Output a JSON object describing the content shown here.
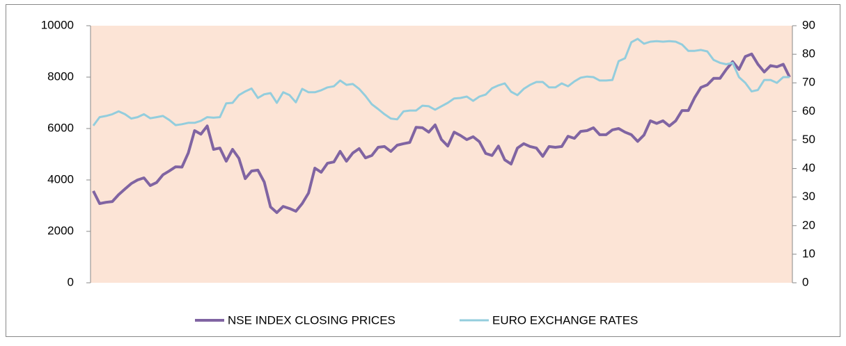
{
  "chart_data": {
    "type": "line",
    "categories": [
      null,
      null,
      null,
      null,
      null,
      null,
      null,
      null,
      null,
      null,
      null,
      null,
      null,
      null,
      null,
      null,
      null,
      null,
      null,
      null,
      null,
      null,
      null,
      null,
      null,
      null,
      null,
      null,
      null,
      null,
      null,
      null,
      null,
      null,
      null,
      null,
      null,
      null,
      null,
      null,
      null,
      null,
      null,
      null,
      null,
      null,
      null,
      null,
      null,
      null,
      null,
      null,
      null,
      null,
      null,
      null,
      null,
      null,
      null,
      null,
      null,
      null,
      null,
      null,
      null,
      null,
      null,
      null,
      null,
      null,
      null,
      null,
      null,
      null,
      null,
      null,
      null,
      null,
      null,
      null,
      null,
      null,
      null,
      null,
      null,
      null,
      null,
      null,
      null,
      null,
      null,
      null,
      null,
      null,
      null,
      null,
      null,
      null,
      null,
      null,
      null,
      null,
      null,
      null,
      null,
      null,
      null,
      null,
      null,
      null,
      null
    ],
    "series": [
      {
        "name": "NSE INDEX CLOSING PRICES",
        "color": "#8064a2",
        "values": [
          3570,
          3080,
          3130,
          3160,
          3430,
          3650,
          3860,
          4000,
          4080,
          3780,
          3900,
          4200,
          4350,
          4510,
          4500,
          5050,
          5920,
          5780,
          6100,
          5190,
          5240,
          4730,
          5190,
          4840,
          4050,
          4350,
          4380,
          3920,
          2950,
          2730,
          2970,
          2890,
          2780,
          3080,
          3490,
          4460,
          4300,
          4650,
          4700,
          5110,
          4730,
          5050,
          5220,
          4860,
          4950,
          5270,
          5300,
          5110,
          5350,
          5410,
          5460,
          6050,
          6030,
          5860,
          6140,
          5570,
          5320,
          5860,
          5730,
          5570,
          5680,
          5490,
          5030,
          4950,
          5320,
          4780,
          4620,
          5240,
          5410,
          5300,
          5240,
          4920,
          5300,
          5270,
          5300,
          5700,
          5620,
          5890,
          5920,
          6030,
          5760,
          5760,
          5950,
          6000,
          5860,
          5760,
          5500,
          5750,
          6300,
          6200,
          6300,
          6100,
          6300,
          6700,
          6700,
          7200,
          7600,
          7700,
          7950,
          7950,
          8300,
          8600,
          8300,
          8800,
          8900,
          8500,
          8200,
          8450,
          8400,
          8500,
          8000
        ]
      },
      {
        "name": "EURO EXCHANGE RATES",
        "color": "#93cddd",
        "axis": "y2",
        "values": [
          55,
          58,
          58.4,
          59,
          60,
          59,
          57.5,
          58,
          59,
          57.6,
          58,
          58.4,
          57,
          55.2,
          55.5,
          56,
          56,
          56.7,
          58,
          57.8,
          58,
          62.8,
          63,
          65.7,
          67,
          68,
          64.7,
          66,
          66.4,
          63,
          66.7,
          65.7,
          63.2,
          67.9,
          66.7,
          66.7,
          67.4,
          68.4,
          68.8,
          70.8,
          69.3,
          69.6,
          67.9,
          65.4,
          62.5,
          60.8,
          59,
          57.5,
          57.2,
          60,
          60.3,
          60.3,
          62,
          61.8,
          60.6,
          61.8,
          63,
          64.5,
          64.7,
          65.2,
          63.7,
          65.2,
          65.9,
          68.1,
          69.1,
          69.8,
          66.9,
          65.7,
          67.9,
          69.3,
          70.3,
          70.3,
          68.4,
          68.4,
          69.8,
          68.8,
          70.5,
          71.8,
          72.2,
          72,
          70.8,
          70.8,
          71,
          77.6,
          78.6,
          84.2,
          85.4,
          83.7,
          84.4,
          84.6,
          84.4,
          84.6,
          84.4,
          83.4,
          81.2,
          81.2,
          81.5,
          81,
          78,
          77,
          76.5,
          77,
          72,
          70,
          67,
          67.5,
          71,
          71,
          70,
          72,
          72
        ]
      }
    ],
    "ylim": [
      0,
      10000
    ],
    "yticks": [
      0,
      2000,
      4000,
      6000,
      8000,
      10000
    ],
    "y2lim": [
      0,
      90
    ],
    "y2ticks": [
      0,
      10,
      20,
      30,
      40,
      50,
      60,
      70,
      80,
      90
    ],
    "plot_background": "#fce4d6",
    "legend": "bottom"
  }
}
